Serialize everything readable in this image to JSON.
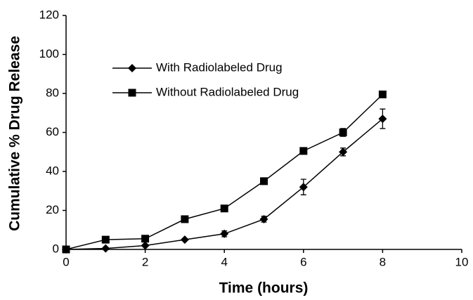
{
  "chart_data": {
    "type": "line",
    "x_label": "Time (hours)",
    "y_label": "Cumulative % Drug Release",
    "x": [
      0,
      1,
      2,
      3,
      4,
      5,
      6,
      7,
      8
    ],
    "series": [
      {
        "name": "With Radiolabeled Drug",
        "color": "#000000",
        "marker": "diamond",
        "values": [
          0,
          0.5,
          2,
          5,
          8,
          15.5,
          32,
          50,
          67
        ],
        "errors": [
          0,
          0.5,
          0.5,
          0.5,
          1.5,
          1.5,
          4,
          2,
          5
        ]
      },
      {
        "name": "Without Radiolabeled Drug",
        "color": "#000000",
        "marker": "square",
        "values": [
          0,
          5,
          5.5,
          15.5,
          21,
          35,
          50.5,
          60,
          79.5
        ],
        "errors": [
          0,
          0.5,
          0.5,
          0.5,
          0.5,
          0.5,
          1,
          2,
          1
        ]
      }
    ],
    "xlim": [
      0,
      10
    ],
    "xticks": [
      0,
      2,
      4,
      6,
      8,
      10
    ],
    "ylim": [
      0,
      120
    ],
    "yticks": [
      0,
      20,
      40,
      60,
      80,
      100,
      120
    ],
    "grid": false,
    "legend": "upper left"
  }
}
